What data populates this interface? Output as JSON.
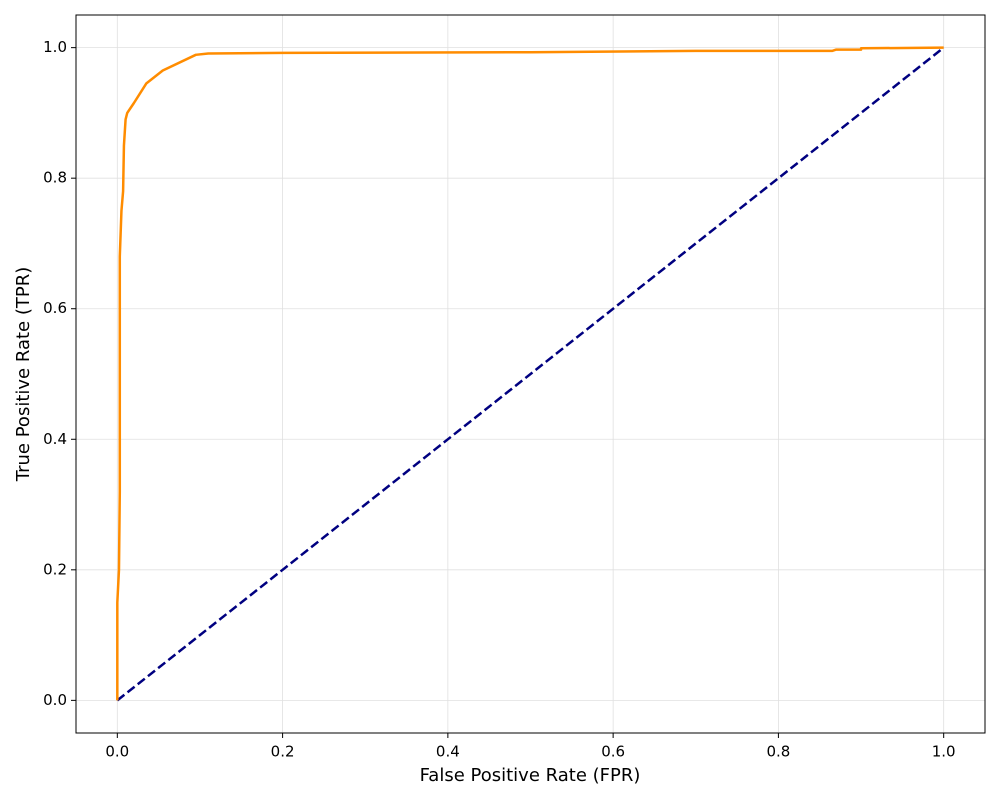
{
  "chart_data": {
    "type": "line",
    "xlabel": "False Positive Rate (FPR)",
    "ylabel": "True Positive Rate (TPR)",
    "xlim": [
      -0.05,
      1.05
    ],
    "ylim": [
      -0.05,
      1.05
    ],
    "xticks": [
      {
        "value": 0,
        "label": "0.0"
      },
      0.2,
      0.4,
      0.6,
      0.8,
      {
        "value": 1,
        "label": "1.0"
      }
    ],
    "yticks": [
      {
        "value": 0,
        "label": "0.0"
      },
      0.2,
      0.4,
      0.6,
      0.8,
      {
        "value": 1,
        "label": "1.0"
      }
    ],
    "grid": true,
    "series": [
      {
        "color": "#ff8c00",
        "linestyle": "solid",
        "x": [
          0,
          0,
          0.002,
          0.003,
          0.003,
          0.005,
          0.007,
          0.008,
          0.01,
          0.012,
          0.02,
          0.035,
          0.055,
          0.095,
          0.11,
          0.2,
          0.5,
          0.7,
          0.865,
          0.87,
          0.9,
          0.9,
          1.0
        ],
        "values": [
          0,
          0.15,
          0.2,
          0.32,
          0.68,
          0.75,
          0.78,
          0.85,
          0.89,
          0.9,
          0.915,
          0.945,
          0.965,
          0.989,
          0.991,
          0.992,
          0.993,
          0.995,
          0.995,
          0.997,
          0.997,
          0.999,
          1.0
        ]
      },
      {
        "color": "#000080",
        "linestyle": "dashed",
        "x": [
          0,
          1
        ],
        "values": [
          0,
          1
        ]
      }
    ]
  }
}
